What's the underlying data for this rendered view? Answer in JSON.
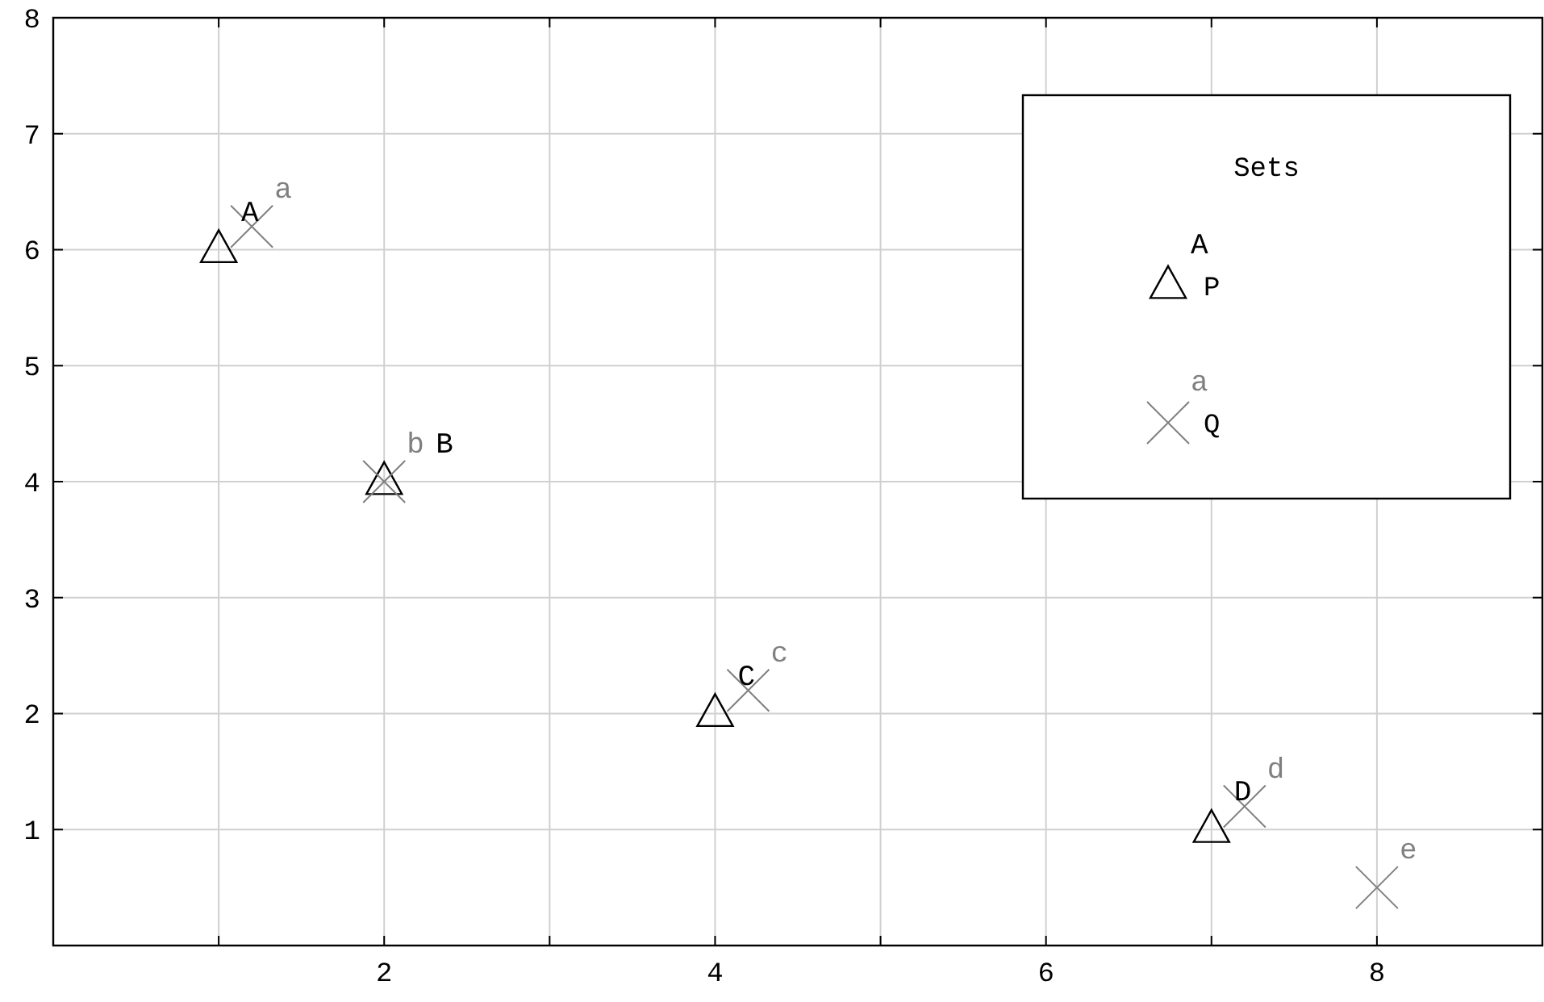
{
  "chart_data": {
    "type": "scatter",
    "legend_title": "Sets",
    "legend": "top right",
    "grid": true,
    "xlim": [
      0,
      9
    ],
    "xticks": [
      {
        "value": 1,
        "label": null
      },
      2,
      {
        "value": 3,
        "label": null
      },
      4,
      {
        "value": 5,
        "label": null
      },
      6,
      {
        "value": 7,
        "label": null
      },
      8
    ],
    "ylim": [
      0,
      8
    ],
    "yticks": [
      1,
      2,
      3,
      4,
      5,
      6,
      7,
      8
    ],
    "series": [
      {
        "name": "P",
        "color": "#000000",
        "marker": "triangle",
        "x": [
          1,
          2,
          4,
          7
        ],
        "values": [
          6,
          4,
          2,
          1
        ],
        "value_labels": [
          "A",
          "B",
          "C",
          "D"
        ]
      },
      {
        "name": "Q",
        "color": "#808080",
        "marker": "cross",
        "x": [
          1.2,
          2,
          4.2,
          7.2,
          8
        ],
        "values": [
          6.2,
          4,
          2.2,
          1.2,
          0.5
        ],
        "value_labels": [
          "a",
          "b",
          "c",
          "d",
          "e"
        ]
      }
    ]
  }
}
